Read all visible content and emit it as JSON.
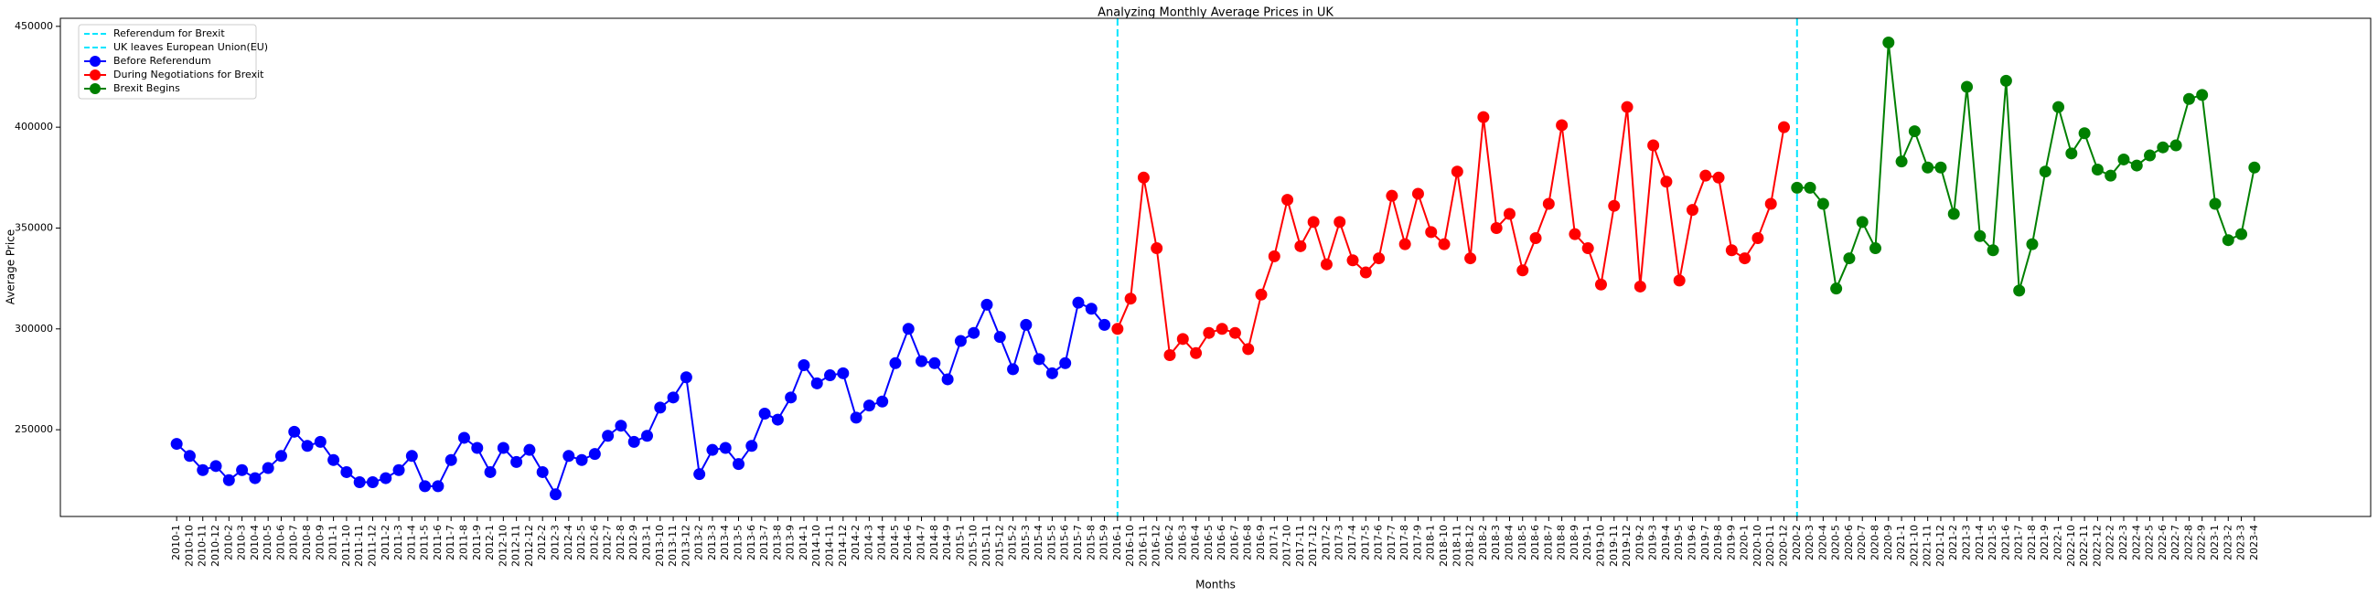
{
  "chart_data": {
    "type": "line",
    "title": "Analyzing Monthly Average Prices in UK",
    "x_label": "Months",
    "y_label": "Average Price",
    "categories": [
      "2010-1",
      "2010-10",
      "2010-11",
      "2010-12",
      "2010-2",
      "2010-3",
      "2010-4",
      "2010-5",
      "2010-6",
      "2010-7",
      "2010-8",
      "2010-9",
      "2011-1",
      "2011-10",
      "2011-11",
      "2011-12",
      "2011-2",
      "2011-3",
      "2011-4",
      "2011-5",
      "2011-6",
      "2011-7",
      "2011-8",
      "2011-9",
      "2012-1",
      "2012-10",
      "2012-11",
      "2012-12",
      "2012-2",
      "2012-3",
      "2012-4",
      "2012-5",
      "2012-6",
      "2012-7",
      "2012-8",
      "2012-9",
      "2013-1",
      "2013-10",
      "2013-11",
      "2013-12",
      "2013-2",
      "2013-3",
      "2013-4",
      "2013-5",
      "2013-6",
      "2013-7",
      "2013-8",
      "2013-9",
      "2014-1",
      "2014-10",
      "2014-11",
      "2014-12",
      "2014-2",
      "2014-3",
      "2014-4",
      "2014-5",
      "2014-6",
      "2014-7",
      "2014-8",
      "2014-9",
      "2015-1",
      "2015-10",
      "2015-11",
      "2015-12",
      "2015-2",
      "2015-3",
      "2015-4",
      "2015-5",
      "2015-6",
      "2015-7",
      "2015-8",
      "2015-9",
      "2016-1",
      "2016-10",
      "2016-11",
      "2016-12",
      "2016-2",
      "2016-3",
      "2016-4",
      "2016-5",
      "2016-6",
      "2016-7",
      "2016-8",
      "2016-9",
      "2017-1",
      "2017-10",
      "2017-11",
      "2017-12",
      "2017-2",
      "2017-3",
      "2017-4",
      "2017-5",
      "2017-6",
      "2017-7",
      "2017-8",
      "2017-9",
      "2018-1",
      "2018-10",
      "2018-11",
      "2018-12",
      "2018-2",
      "2018-3",
      "2018-4",
      "2018-5",
      "2018-6",
      "2018-7",
      "2018-8",
      "2018-9",
      "2019-1",
      "2019-10",
      "2019-11",
      "2019-12",
      "2019-2",
      "2019-3",
      "2019-4",
      "2019-5",
      "2019-6",
      "2019-7",
      "2019-8",
      "2019-9",
      "2020-1",
      "2020-10",
      "2020-11",
      "2020-12",
      "2020-2",
      "2020-3",
      "2020-4",
      "2020-5",
      "2020-6",
      "2020-7",
      "2020-8",
      "2020-9",
      "2021-1",
      "2021-10",
      "2021-11",
      "2021-12",
      "2021-2",
      "2021-3",
      "2021-4",
      "2021-5",
      "2021-6",
      "2021-7",
      "2021-8",
      "2021-9",
      "2022-1",
      "2022-10",
      "2022-11",
      "2022-12",
      "2022-2",
      "2022-3",
      "2022-4",
      "2022-5",
      "2022-6",
      "2022-7",
      "2022-8",
      "2022-9",
      "2023-1",
      "2023-2",
      "2023-3",
      "2023-4"
    ],
    "vlines": [
      {
        "name": "Referendum for Brexit",
        "x": "2016-1",
        "color": "#00e5ff"
      },
      {
        "name": "UK leaves European Union(EU)",
        "x": "2020-2",
        "color": "#00e5ff"
      }
    ],
    "series": [
      {
        "name": "Before Referendum",
        "color": "#0000ff",
        "values": [
          243000,
          237000,
          230000,
          232000,
          225000,
          230000,
          226000,
          231000,
          237000,
          249000,
          242000,
          244000,
          235000,
          229000,
          224000,
          224000,
          226000,
          230000,
          237000,
          222000,
          222000,
          235000,
          246000,
          241000,
          229000,
          241000,
          234000,
          240000,
          229000,
          218000,
          237000,
          235000,
          238000,
          247000,
          252000,
          244000,
          247000,
          261000,
          266000,
          276000,
          228000,
          240000,
          241000,
          233000,
          242000,
          258000,
          255000,
          266000,
          282000,
          273000,
          277000,
          278000,
          256000,
          262000,
          264000,
          283000,
          300000,
          284000,
          283000,
          275000,
          294000,
          298000,
          312000,
          296000,
          280000,
          302000,
          285000,
          278000,
          283000,
          313000,
          310000,
          302000,
          null,
          null,
          null,
          null,
          null,
          null,
          null,
          null,
          null,
          null,
          null,
          null,
          null,
          null,
          null,
          null,
          null,
          null,
          null,
          null,
          null,
          null,
          null,
          null,
          null,
          null,
          null,
          null,
          null,
          null,
          null,
          null,
          null,
          null,
          null,
          null,
          null,
          null,
          null,
          null,
          null,
          null,
          null,
          null,
          null,
          null,
          null,
          null,
          null,
          null,
          null,
          null,
          null,
          null,
          null,
          null,
          null,
          null,
          null,
          null,
          null,
          null,
          null,
          null,
          null,
          null,
          null,
          null,
          null,
          null,
          null,
          null,
          null,
          null,
          null,
          null,
          null,
          null,
          null,
          null,
          null,
          null,
          null,
          null,
          null,
          null,
          null,
          null
        ]
      },
      {
        "name": "During Negotiations for Brexit",
        "color": "#ff0000",
        "values": [
          null,
          null,
          null,
          null,
          null,
          null,
          null,
          null,
          null,
          null,
          null,
          null,
          null,
          null,
          null,
          null,
          null,
          null,
          null,
          null,
          null,
          null,
          null,
          null,
          null,
          null,
          null,
          null,
          null,
          null,
          null,
          null,
          null,
          null,
          null,
          null,
          null,
          null,
          null,
          null,
          null,
          null,
          null,
          null,
          null,
          null,
          null,
          null,
          null,
          null,
          null,
          null,
          null,
          null,
          null,
          null,
          null,
          null,
          null,
          null,
          null,
          null,
          null,
          null,
          null,
          null,
          null,
          null,
          null,
          null,
          null,
          null,
          300000,
          315000,
          375000,
          340000,
          287000,
          295000,
          288000,
          298000,
          300000,
          298000,
          290000,
          317000,
          336000,
          364000,
          341000,
          353000,
          332000,
          353000,
          334000,
          328000,
          335000,
          366000,
          342000,
          367000,
          348000,
          342000,
          378000,
          335000,
          405000,
          350000,
          357000,
          329000,
          345000,
          362000,
          401000,
          347000,
          340000,
          322000,
          361000,
          410000,
          321000,
          391000,
          373000,
          324000,
          359000,
          376000,
          375000,
          339000,
          335000,
          345000,
          362000,
          400000,
          null,
          null,
          null,
          null,
          null,
          null,
          null,
          null,
          null,
          null,
          null,
          null,
          null,
          null,
          null,
          null,
          null,
          null,
          null,
          null,
          null,
          null,
          null,
          null,
          null,
          null,
          null,
          null,
          null,
          null,
          null,
          null,
          null,
          null,
          null,
          null
        ]
      },
      {
        "name": "Brexit Begins",
        "color": "#008000",
        "values": [
          null,
          null,
          null,
          null,
          null,
          null,
          null,
          null,
          null,
          null,
          null,
          null,
          null,
          null,
          null,
          null,
          null,
          null,
          null,
          null,
          null,
          null,
          null,
          null,
          null,
          null,
          null,
          null,
          null,
          null,
          null,
          null,
          null,
          null,
          null,
          null,
          null,
          null,
          null,
          null,
          null,
          null,
          null,
          null,
          null,
          null,
          null,
          null,
          null,
          null,
          null,
          null,
          null,
          null,
          null,
          null,
          null,
          null,
          null,
          null,
          null,
          null,
          null,
          null,
          null,
          null,
          null,
          null,
          null,
          null,
          null,
          null,
          null,
          null,
          null,
          null,
          null,
          null,
          null,
          null,
          null,
          null,
          null,
          null,
          null,
          null,
          null,
          null,
          null,
          null,
          null,
          null,
          null,
          null,
          null,
          null,
          null,
          null,
          null,
          null,
          null,
          null,
          null,
          null,
          null,
          null,
          null,
          null,
          null,
          null,
          null,
          null,
          null,
          null,
          null,
          null,
          null,
          null,
          null,
          null,
          null,
          null,
          null,
          null,
          370000,
          370000,
          362000,
          320000,
          335000,
          353000,
          340000,
          442000,
          383000,
          398000,
          380000,
          380000,
          357000,
          420000,
          346000,
          339000,
          423000,
          319000,
          342000,
          378000,
          410000,
          387000,
          397000,
          379000,
          376000,
          384000,
          381000,
          386000,
          390000,
          391000,
          414000,
          416000,
          362000,
          344000,
          347000,
          380000
        ]
      }
    ],
    "ylim": [
      207000,
      454000
    ],
    "yticks": [
      250000,
      300000,
      350000,
      400000,
      450000
    ],
    "legend": "upper left",
    "marker": "o"
  }
}
